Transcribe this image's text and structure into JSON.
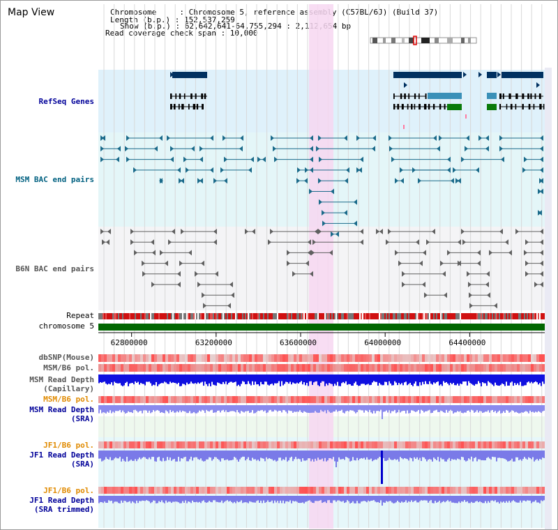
{
  "page_title": "Map View",
  "info": {
    "chromosome": "Chromosome     : Chromosome 5, reference assembly (C57BL/6J) (Build 37)",
    "length": "Length (b.p.) : 152,537,259",
    "show": "Show (b.p.) : 62,642,641-64,755,294 : 2,112,654 bp",
    "coverage": "Read coverage check span : 10,000"
  },
  "tracks": {
    "refseq": "RefSeq Genes",
    "msm_bac": "MSM BAC end pairs",
    "b6n_bac": "B6N BAC end pairs",
    "repeat": "Repeat",
    "chromosome": "chromosome 5",
    "dbsnp": "dbSNP(Mouse)",
    "msm_pol": "MSM/B6 pol.",
    "msm_depth_cap_1": "MSM Read Depth",
    "msm_depth_cap_2": "(Capillary)",
    "msm_pol_2": "MSM/B6 pol.",
    "msm_depth_sra_1": "MSM Read Depth",
    "msm_depth_sra_2": "(SRA)",
    "jf1_pol": "JF1/B6 pol.",
    "jf1_depth_sra_1": "JF1 Read Depth",
    "jf1_depth_sra_2": "(SRA)",
    "jf1_pol_2": "JF1/B6 pol.",
    "jf1_depth_trim_1": "JF1 Read Depth",
    "jf1_depth_trim_2": "(SRA trimmed)"
  },
  "axis": {
    "ticks": [
      {
        "value": 62800000,
        "label": "62800000"
      },
      {
        "value": 63200000,
        "label": "63200000"
      },
      {
        "value": 63600000,
        "label": "63600000"
      },
      {
        "value": 64000000,
        "label": "64000000"
      },
      {
        "value": 64400000,
        "label": "64400000"
      }
    ]
  },
  "colors": {
    "label_blue": "#000099",
    "label_teal": "#006080",
    "label_gray": "#555555",
    "label_orange": "#e08a00",
    "refseq_bg": "#dff1fb",
    "msm_bg": "#e4f6f8",
    "b6n_bg": "#f4f4f6",
    "highlight": "#f7d7f1",
    "gene_dark": "#003060",
    "gene_teal": "#3a90b8",
    "gene_green": "#0a7a0a",
    "chrom_green": "#006600"
  }
}
